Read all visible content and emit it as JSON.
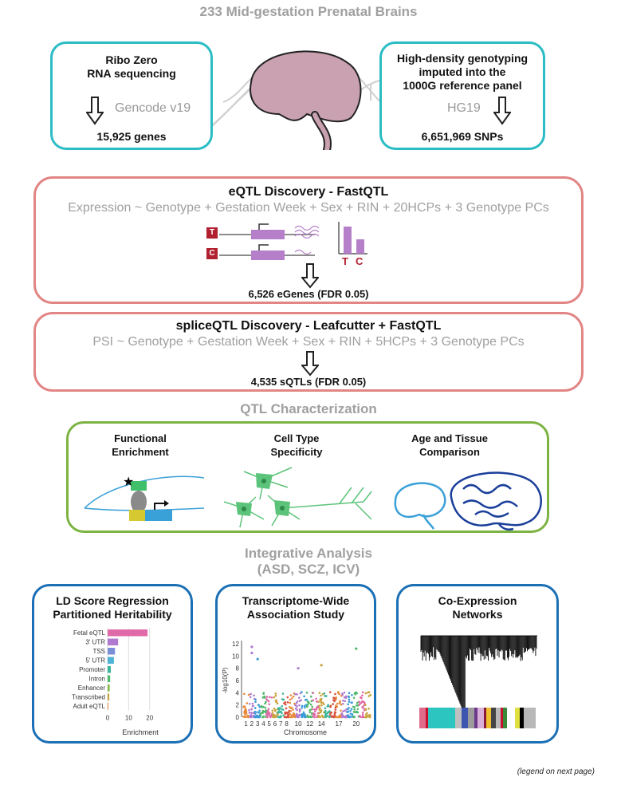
{
  "header": {
    "title": "233 Mid-gestation Prenatal Brains"
  },
  "rna_box": {
    "line1": "Ribo Zero",
    "line2": "RNA sequencing",
    "annotation": "Gencode v19",
    "result": "15,925 genes"
  },
  "geno_box": {
    "line1": "High-density genotyping",
    "line2": "imputed into the",
    "line3": "1000G reference panel",
    "annotation": "HG19",
    "result": "6,651,969 SNPs"
  },
  "eqtl_box": {
    "title": "eQTL Discovery - FastQTL",
    "formula": "Expression ~ Genotype + Gestation Week + Sex + RIN + 20HCPs + 3 Genotype PCs",
    "allele_t": "T",
    "allele_c": "C",
    "bar_t": "T",
    "bar_c": "C",
    "result": "6,526 eGenes (FDR 0.05)"
  },
  "sqtl_box": {
    "title": "spliceQTL Discovery - Leafcutter + FastQTL",
    "formula": "PSI ~ Genotype + Gestation Week + Sex + RIN + 5HCPs + 3 Genotype PCs",
    "result": "4,535 sQTLs (FDR 0.05)"
  },
  "qtl_section": {
    "title": "QTL Characterization",
    "col1_l1": "Functional",
    "col1_l2": "Enrichment",
    "col2_l1": "Cell Type",
    "col2_l2": "Specificity",
    "col3_l1": "Age and Tissue",
    "col3_l2": "Comparison"
  },
  "integrative": {
    "title_l1": "Integrative Analysis",
    "title_l2": "(ASD, SCZ, ICV)"
  },
  "ldsc_box": {
    "title_l1": "LD Score Regression",
    "title_l2": "Partitioned Heritability"
  },
  "twas_box": {
    "title_l1": "Transcriptome-Wide",
    "title_l2": "Association Study"
  },
  "coexp_box": {
    "title_l1": "Co-Expression",
    "title_l2": "Networks"
  },
  "chart_data": [
    {
      "type": "bar",
      "orientation": "horizontal",
      "categories": [
        "Fetal eQTL",
        "3' UTR",
        "TSS",
        "5' UTR",
        "Promoter",
        "Intron",
        "Enhancer",
        "Transcribed",
        "Adult eQTL"
      ],
      "values": [
        19,
        5,
        3.5,
        3,
        1.5,
        1.2,
        1,
        0.8,
        0.3
      ],
      "xlabel": "Enrichment",
      "xticks": [
        "0",
        "10",
        "20"
      ],
      "xlim": [
        0,
        22
      ],
      "colors": [
        "#e06aa8",
        "#b07ad0",
        "#7b8fd8",
        "#4fb3d8",
        "#38b59a",
        "#4fb86a",
        "#8ab84a",
        "#c9a23c",
        "#e88a3c"
      ]
    },
    {
      "type": "scatter",
      "subtype": "manhattan",
      "ylabel": "-log10(P)",
      "xlabel": "Chromosome",
      "yticks": [
        "0",
        "2",
        "4",
        "6",
        "8",
        "10",
        "12"
      ],
      "ylim": [
        0,
        12
      ],
      "xticks": [
        "1",
        "2",
        "3",
        "4",
        "5",
        "6",
        "7",
        "8",
        "10",
        "12",
        "14",
        "17",
        "20"
      ],
      "peaks": [
        {
          "chrom": "2",
          "y": 11.5
        },
        {
          "chrom": "2",
          "y": 10.5
        },
        {
          "chrom": "3",
          "y": 9.5
        },
        {
          "chrom": "10",
          "y": 8.0
        },
        {
          "chrom": "14",
          "y": 8.5
        },
        {
          "chrom": "20",
          "y": 11.2
        }
      ]
    }
  ],
  "network": {
    "module_colors": [
      "#e06a8a",
      "#c8102e",
      "#2cc5c0",
      "#c0c0c0",
      "#3d57b0",
      "#9c9c9c",
      "#6b3a8a",
      "#d9b0d8",
      "#8a1a3a",
      "#f0c030",
      "#444444",
      "#b8b8b8",
      "#c8102e",
      "#3a8a3a",
      "#ffffff",
      "#e0e040",
      "#000000"
    ]
  },
  "colors": {
    "teal": "#2bbcc4",
    "salmon": "#e28585",
    "green": "#7cb342",
    "blue": "#1b6fb5",
    "brain": "#c9a1b0",
    "purple": "#b57fc9",
    "red_allele": "#b0202e"
  },
  "footer": {
    "note": "(legend on next page)"
  }
}
